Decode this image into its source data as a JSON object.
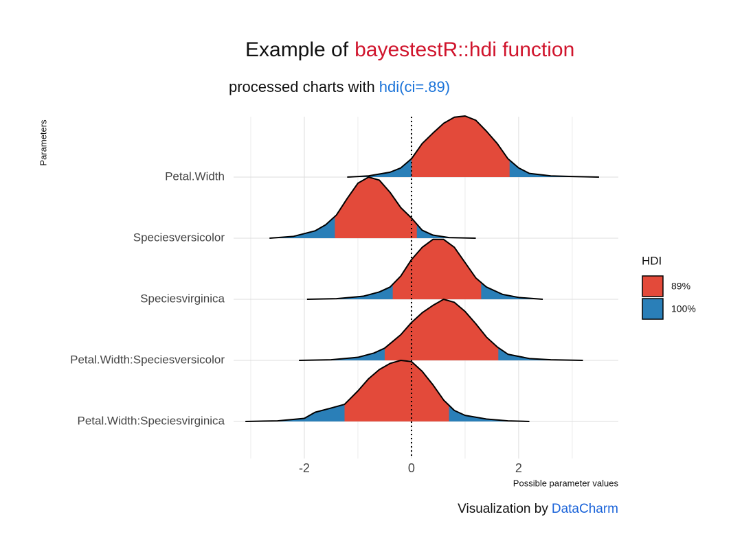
{
  "chart_data": {
    "type": "ridgeline",
    "title": {
      "text": "Example of",
      "highlight": "bayestestR::hdi function"
    },
    "subtitle": {
      "text": "processed charts with",
      "highlight": "hdi(ci=.89)"
    },
    "caption": {
      "text": "Visualization by",
      "highlight": "DataCharm"
    },
    "x_label": "Possible parameter values",
    "y_label": "Parameters",
    "xlim": [
      -3.32,
      3.86
    ],
    "xticks": [
      -2,
      0,
      2
    ],
    "minor_xticks": [
      -3,
      -1,
      1,
      3
    ],
    "reference_line": 0,
    "grid": true,
    "legend": {
      "title": "HDI",
      "position": "right",
      "items": [
        {
          "name": "89%",
          "color": "#e34a3a"
        },
        {
          "name": "100%",
          "color": "#2a7fb8"
        }
      ]
    },
    "series": [
      {
        "name": "Petal.Width",
        "hdi": [
          0,
          1.83
        ],
        "x": [
          -1.2,
          -0.8,
          -0.4,
          -0.2,
          0,
          0.2,
          0.4,
          0.6,
          0.8,
          1.0,
          1.2,
          1.4,
          1.6,
          1.8,
          2.0,
          2.2,
          2.6,
          3.0,
          3.5
        ],
        "density": [
          0,
          0.02,
          0.08,
          0.15,
          0.3,
          0.55,
          0.72,
          0.88,
          0.98,
          1.0,
          0.93,
          0.75,
          0.55,
          0.3,
          0.15,
          0.06,
          0.02,
          0.01,
          0
        ]
      },
      {
        "name": "Speciesversicolor",
        "hdi": [
          -1.43,
          0.1
        ],
        "x": [
          -2.65,
          -2.2,
          -1.8,
          -1.6,
          -1.4,
          -1.2,
          -1.0,
          -0.8,
          -0.6,
          -0.4,
          -0.2,
          0,
          0.2,
          0.4,
          0.7,
          1.2
        ],
        "density": [
          0,
          0.03,
          0.12,
          0.22,
          0.38,
          0.65,
          0.9,
          1.0,
          0.95,
          0.75,
          0.5,
          0.33,
          0.13,
          0.05,
          0.01,
          0
        ]
      },
      {
        "name": "Speciesvirginica",
        "hdi": [
          -0.35,
          1.3
        ],
        "x": [
          -1.95,
          -1.4,
          -0.9,
          -0.6,
          -0.4,
          -0.2,
          0,
          0.2,
          0.4,
          0.6,
          0.8,
          1.0,
          1.2,
          1.4,
          1.7,
          2.0,
          2.45
        ],
        "density": [
          0,
          0.01,
          0.05,
          0.12,
          0.2,
          0.38,
          0.65,
          0.85,
          0.98,
          0.98,
          0.85,
          0.6,
          0.35,
          0.2,
          0.08,
          0.03,
          0
        ]
      },
      {
        "name": "Petal.Width:Speciesversicolor",
        "hdi": [
          -0.5,
          1.62
        ],
        "x": [
          -2.1,
          -1.5,
          -1.0,
          -0.7,
          -0.5,
          -0.2,
          0,
          0.2,
          0.4,
          0.6,
          0.8,
          1.0,
          1.2,
          1.4,
          1.6,
          1.8,
          2.2,
          2.6,
          3.2
        ],
        "density": [
          0,
          0.01,
          0.05,
          0.12,
          0.2,
          0.42,
          0.62,
          0.78,
          0.9,
          1.0,
          0.95,
          0.8,
          0.6,
          0.38,
          0.22,
          0.1,
          0.03,
          0.01,
          0
        ]
      },
      {
        "name": "Petal.Width:Speciesvirginica",
        "hdi": [
          -1.25,
          0.7
        ],
        "x": [
          -3.1,
          -2.5,
          -2.0,
          -1.8,
          -1.5,
          -1.25,
          -1.0,
          -0.8,
          -0.6,
          -0.4,
          -0.2,
          0,
          0.2,
          0.4,
          0.6,
          0.8,
          1.0,
          1.4,
          1.8,
          2.2
        ],
        "density": [
          0,
          0.01,
          0.05,
          0.15,
          0.22,
          0.28,
          0.5,
          0.7,
          0.85,
          0.95,
          1.0,
          0.98,
          0.82,
          0.6,
          0.35,
          0.18,
          0.1,
          0.04,
          0.01,
          0
        ]
      }
    ]
  }
}
